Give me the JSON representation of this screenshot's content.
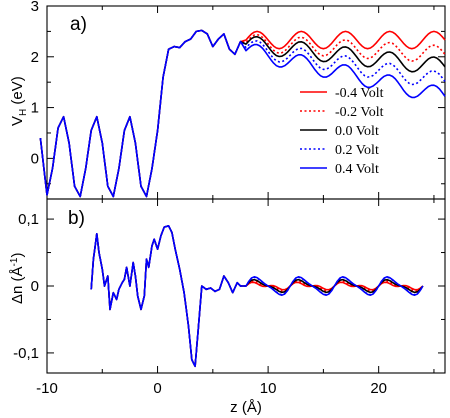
{
  "chart_data": [
    {
      "type": "line",
      "panel_label": "a)",
      "ylabel_main": "V",
      "ylabel_sub": "H",
      "ylabel_unit": " (eV)",
      "xlim": [
        -10,
        26
      ],
      "ylim": [
        -0.8,
        3.0
      ],
      "yticks": [
        0,
        1,
        2,
        3
      ],
      "xticks": [
        -10,
        0,
        10,
        20
      ],
      "show_x_tick_labels": false,
      "legend_position": "right",
      "series": [
        {
          "name": "-0.4 Volt",
          "color": "#ff0000",
          "dash": "solid",
          "bias": -0.4
        },
        {
          "name": "-0.2 Volt",
          "color": "#ff0000",
          "dash": "dotted",
          "bias": -0.2
        },
        {
          "name": "0.0 Volt",
          "color": "#000000",
          "dash": "solid",
          "bias": 0.0
        },
        {
          "name": "0.2 Volt",
          "color": "#0000ff",
          "dash": "dotted",
          "bias": 0.2
        },
        {
          "name": "0.4 Volt",
          "color": "#0000ff",
          "dash": "solid",
          "bias": 0.4
        }
      ],
      "shared_points": {
        "x": [
          -10.6,
          -10.0,
          -9.5,
          -9.0,
          -8.5,
          -8.0,
          -7.5,
          -7.0,
          -6.5,
          -6.0,
          -5.5,
          -5.0,
          -4.5,
          -4.0,
          -3.5,
          -3.0,
          -2.5,
          -2.0,
          -1.5,
          -1.0,
          -0.5,
          0.0,
          0.5,
          1.0,
          1.5,
          2.0,
          2.5,
          3.0,
          3.5,
          4.0,
          4.5,
          5.0,
          5.5,
          6.0,
          6.5,
          7.0,
          7.5,
          8.0
        ],
        "y": [
          0.4,
          -0.72,
          -0.2,
          0.6,
          0.82,
          0.3,
          -0.55,
          -0.75,
          -0.2,
          0.55,
          0.82,
          0.3,
          -0.55,
          -0.75,
          -0.2,
          0.55,
          0.82,
          0.3,
          -0.55,
          -0.75,
          -0.2,
          0.55,
          1.6,
          2.15,
          2.2,
          2.18,
          2.3,
          2.35,
          2.5,
          2.52,
          2.45,
          2.2,
          2.35,
          2.45,
          2.15,
          2.05,
          2.3,
          2.35
        ]
      },
      "tail": {
        "x_start": 8.0,
        "x_end": 26.0,
        "period": 4.0,
        "amplitude": 0.17,
        "base_at_start_by_bias": {
          "-0.4": 2.33,
          "-0.2": 2.28,
          "0.0": 2.25,
          "0.2": 2.18,
          "0.4": 2.12
        },
        "slope_per_angstrom_by_bias": {
          "-0.4": 0.0,
          "-0.2": -0.013,
          "0.0": -0.025,
          "0.2": -0.037,
          "0.4": -0.05
        }
      }
    },
    {
      "type": "line",
      "panel_label": "b)",
      "ylabel_main": "Δn (",
      "ylabel_unit_main": "Å",
      "ylabel_unit_sup": "-1",
      "ylabel_close": ")",
      "xlabel": "z (Å)",
      "xlim": [
        -10,
        26
      ],
      "ylim": [
        -0.13,
        0.13
      ],
      "yticks": [
        -0.1,
        0,
        0.1
      ],
      "ytick_labels": [
        "-0,1",
        "0",
        "0,1"
      ],
      "xticks": [
        -10,
        0,
        10,
        20
      ],
      "xtick_labels": [
        "-10",
        "0",
        "10",
        "20"
      ],
      "shared_points": {
        "x": [
          -6.0,
          -5.8,
          -5.5,
          -5.3,
          -5.0,
          -4.8,
          -4.5,
          -4.3,
          -4.0,
          -3.7,
          -3.5,
          -3.2,
          -3.0,
          -2.8,
          -2.5,
          -2.2,
          -2.0,
          -1.8,
          -1.5,
          -1.2,
          -1.0,
          -0.8,
          -0.5,
          -0.3,
          0.0,
          0.3,
          0.6,
          1.0,
          1.3,
          1.6,
          2.0,
          2.4,
          2.8,
          3.1,
          3.4,
          3.7,
          4.0,
          4.4,
          4.8,
          5.2,
          5.6,
          6.0,
          6.4,
          6.8,
          7.2,
          7.5,
          8.0
        ],
        "y": [
          -0.005,
          0.04,
          0.078,
          0.05,
          0.025,
          0.0,
          0.015,
          -0.035,
          -0.01,
          -0.02,
          -0.005,
          0.005,
          0.01,
          0.028,
          0.0,
          0.035,
          0.015,
          -0.015,
          -0.035,
          -0.015,
          0.04,
          0.028,
          0.06,
          0.07,
          0.055,
          0.075,
          0.088,
          0.09,
          0.08,
          0.055,
          0.025,
          -0.01,
          -0.06,
          -0.11,
          -0.12,
          -0.06,
          0.0,
          -0.005,
          -0.003,
          -0.008,
          -0.005,
          0.015,
          0.005,
          -0.01,
          0.005,
          0.0,
          0.0
        ]
      },
      "tail": {
        "x_start": 8.0,
        "x_end": 24.0,
        "period": 4.0,
        "amplitude_by_bias": {
          "-0.4": 0.004,
          "-0.2": 0.006,
          "0.0": 0.009,
          "0.2": 0.012,
          "0.4": 0.014
        }
      }
    }
  ]
}
